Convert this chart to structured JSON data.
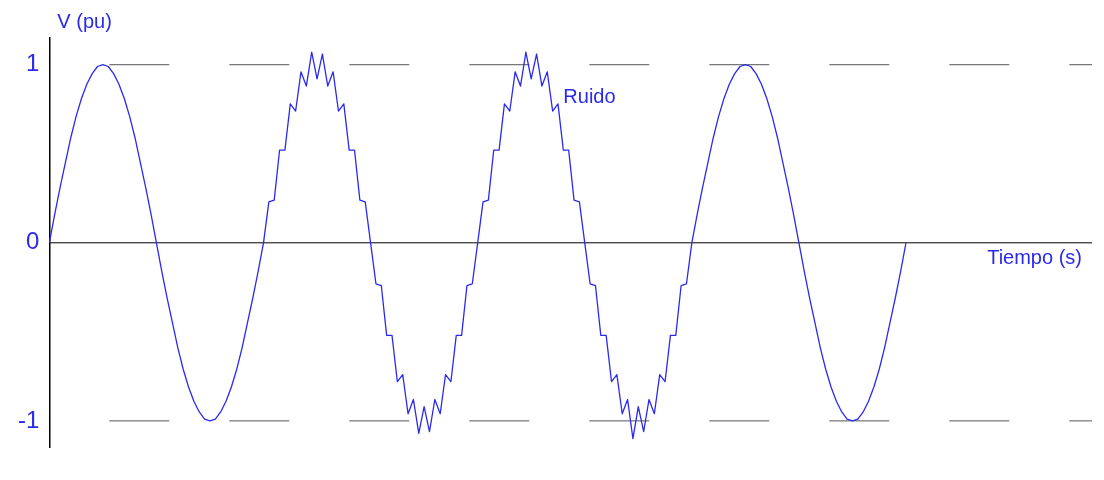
{
  "chart_data": {
    "type": "line",
    "xlabel": "Tiempo (s)",
    "ylabel": "V (pu)",
    "annotations": [
      "Ruido"
    ],
    "categories": [
      null,
      null,
      null,
      null,
      null,
      null,
      null,
      null,
      null,
      null,
      null,
      null,
      null,
      null,
      null,
      null,
      null,
      null,
      null,
      null,
      null,
      null,
      null,
      null,
      null,
      null,
      null,
      null,
      null,
      null,
      null,
      null,
      null,
      null,
      null,
      null,
      null,
      null,
      null,
      null,
      null,
      null,
      null,
      null,
      null,
      null,
      null,
      null,
      null,
      null,
      null,
      null,
      null,
      null,
      null,
      null,
      null,
      null,
      null,
      null,
      null,
      null,
      null,
      null,
      null,
      null,
      null,
      null,
      null,
      null,
      null,
      null,
      null,
      null,
      null,
      null,
      null,
      null,
      null,
      null,
      null,
      null,
      null,
      null,
      null,
      null,
      null,
      null,
      null,
      null,
      null,
      null,
      null,
      null,
      null,
      null,
      null,
      null,
      null,
      null,
      null,
      null,
      null,
      null,
      null,
      null,
      null,
      null,
      null,
      null,
      null,
      null,
      null,
      null,
      null,
      null,
      null,
      null,
      null,
      null,
      null,
      null,
      null,
      null,
      null,
      null,
      null,
      null,
      null,
      null,
      null,
      null,
      null,
      null,
      null,
      null,
      null,
      null,
      null,
      null,
      null,
      null,
      null,
      null,
      null,
      null,
      null,
      null,
      null,
      null,
      null,
      null,
      null,
      null,
      null,
      null,
      null,
      null,
      null,
      null,
      null
    ],
    "series": [
      {
        "color": "#2a2aee",
        "values": [
          0,
          0.16,
          0.31,
          0.45,
          0.59,
          0.71,
          0.81,
          0.89,
          0.95,
          0.99,
          1,
          0.99,
          0.95,
          0.89,
          0.81,
          0.71,
          0.59,
          0.45,
          0.31,
          0.16,
          0,
          -0.16,
          -0.31,
          -0.45,
          -0.59,
          -0.71,
          -0.81,
          -0.89,
          -0.95,
          -0.99,
          -1,
          -0.99,
          -0.95,
          -0.89,
          -0.81,
          -0.71,
          -0.59,
          -0.45,
          -0.31,
          -0.16,
          0,
          0.23,
          0.24,
          0.52,
          0.52,
          0.78,
          0.74,
          0.96,
          0.88,
          1.07,
          0.92,
          1.06,
          0.88,
          0.96,
          0.74,
          0.78,
          0.52,
          0.52,
          0.24,
          0.23,
          0,
          -0.23,
          -0.24,
          -0.52,
          -0.52,
          -0.78,
          -0.74,
          -0.96,
          -0.88,
          -1.07,
          -0.92,
          -1.06,
          -0.88,
          -0.96,
          -0.74,
          -0.78,
          -0.52,
          -0.52,
          -0.24,
          -0.23,
          0,
          0.23,
          0.24,
          0.52,
          0.52,
          0.78,
          0.74,
          0.96,
          0.88,
          1.07,
          0.92,
          1.06,
          0.88,
          0.96,
          0.74,
          0.78,
          0.52,
          0.52,
          0.24,
          0.23,
          0,
          -0.23,
          -0.24,
          -0.52,
          -0.52,
          -0.78,
          -0.74,
          -0.96,
          -0.88,
          -1.1,
          -0.92,
          -1.06,
          -0.88,
          -0.96,
          -0.74,
          -0.78,
          -0.52,
          -0.52,
          -0.24,
          -0.23,
          0,
          0.16,
          0.31,
          0.45,
          0.59,
          0.71,
          0.81,
          0.89,
          0.95,
          0.99,
          1,
          0.99,
          0.95,
          0.89,
          0.81,
          0.71,
          0.59,
          0.45,
          0.31,
          0.16,
          0,
          -0.16,
          -0.31,
          -0.45,
          -0.59,
          -0.71,
          -0.81,
          -0.89,
          -0.95,
          -0.99,
          -1,
          -0.99,
          -0.95,
          -0.89,
          -0.81,
          -0.71,
          -0.59,
          -0.45,
          -0.31,
          -0.16,
          0
        ]
      }
    ],
    "ylim": [
      -1.15,
      1.15
    ],
    "yticks": [
      -1,
      0,
      1
    ],
    "tick_labels": "y",
    "grid": false,
    "legend": false,
    "marker": "none",
    "line_style": "solid",
    "ref_lines": [
      {
        "axis": "y",
        "value": 1,
        "color": "#555555",
        "line_style": "dashed"
      },
      {
        "axis": "y",
        "value": -1,
        "color": "#555555",
        "line_style": "dashed"
      }
    ]
  }
}
